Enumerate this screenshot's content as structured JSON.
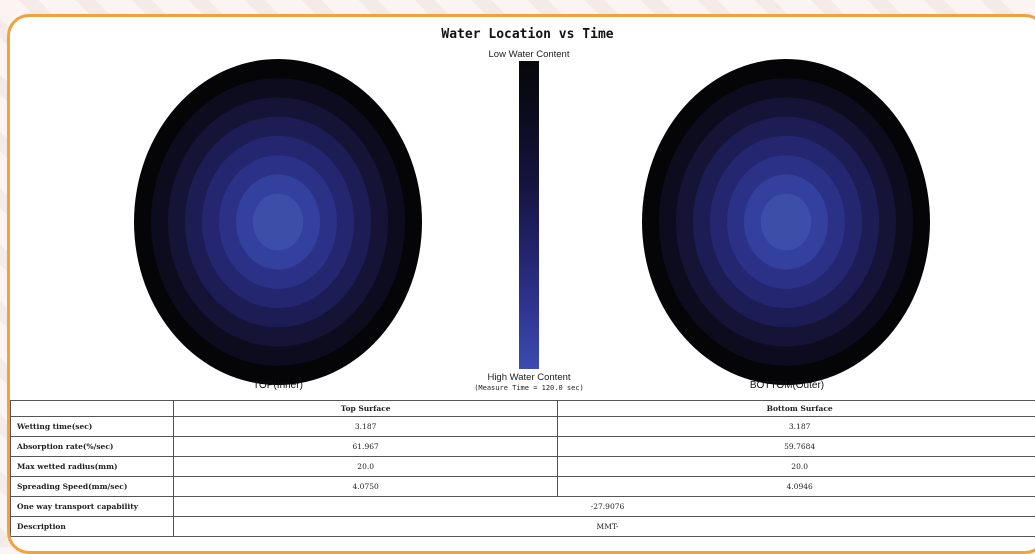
{
  "title": "Water Location vs Time",
  "scale": {
    "top_label": "Low Water Content",
    "bottom_label": "High Water Content",
    "measure_text": "(Measure Time = 120.0 sec)"
  },
  "discs": {
    "top_label": "TOP(Inner)",
    "bottom_label": "BOTTOM(Outer)",
    "ring_colors": [
      "#050507",
      "#0c0c1e",
      "#151437",
      "#1d1d55",
      "#252670",
      "#2c3188",
      "#34409e",
      "#3c4ea8"
    ]
  },
  "table": {
    "headers": [
      "",
      "Top Surface",
      "Bottom Surface"
    ],
    "rows": [
      {
        "label": "Wetting time(sec)",
        "top": "3.187",
        "bottom": "3.187"
      },
      {
        "label": "Absorption rate(%/sec)",
        "top": "61.967",
        "bottom": "59.7684"
      },
      {
        "label": "Max wetted radius(mm)",
        "top": "20.0",
        "bottom": "20.0"
      },
      {
        "label": "Spreading Speed(mm/sec)",
        "top": "4.0750",
        "bottom": "4.0946"
      }
    ],
    "transport": {
      "label": "One way transport capability",
      "value": "-27.9076"
    },
    "description": {
      "label": "Description",
      "value": "MMT-"
    }
  }
}
